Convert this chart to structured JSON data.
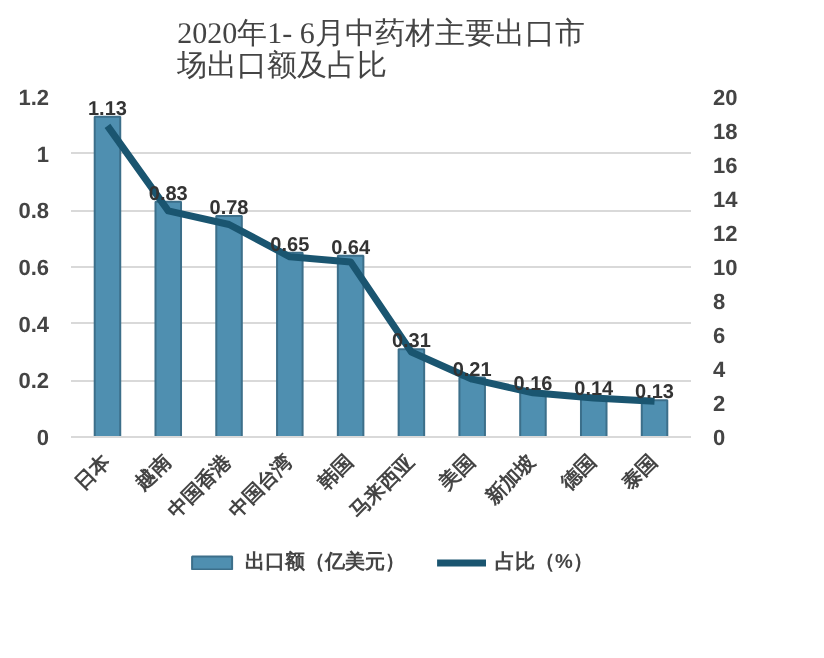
{
  "chart_data": {
    "type": "bar",
    "title": "2020年1- 6月中药材主要出口市场出口额及占比",
    "categories": [
      "日本",
      "越南",
      "中国香港",
      "中国台湾",
      "韩国",
      "马来西亚",
      "美国",
      "新加坡",
      "德国",
      "泰国"
    ],
    "series": [
      {
        "name": "出口额（亿美元）",
        "color": "#4f8fb0",
        "values": [
          1.13,
          0.83,
          0.78,
          0.65,
          0.64,
          0.31,
          0.21,
          0.16,
          0.14,
          0.13
        ],
        "value_labels": [
          "1.13",
          "0.83",
          "0.78",
          "0.65",
          "0.64",
          "0.31",
          "0.21",
          "0.16",
          "0.14",
          "0.13"
        ]
      },
      {
        "name": "占比（%）",
        "type": "line",
        "axis": "y2",
        "color": "#1a5570",
        "values": [
          18.3,
          13.3,
          12.5,
          10.6,
          10.3,
          5.0,
          3.4,
          2.6,
          2.3,
          2.1
        ]
      }
    ],
    "ylim": [
      0,
      1.2
    ],
    "yticks": [
      0,
      0.2,
      0.4,
      0.6,
      0.8,
      1,
      1.2
    ],
    "y2lim": [
      0,
      20
    ],
    "y2ticks": [
      0,
      2,
      4,
      6,
      8,
      10,
      12,
      14,
      16,
      18,
      20
    ],
    "grid": "y",
    "legend": "bottom",
    "line_style": "solid",
    "marker": "none"
  }
}
